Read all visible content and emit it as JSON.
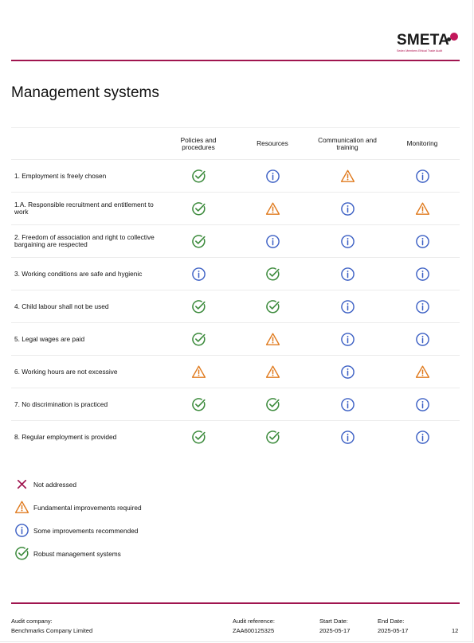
{
  "logo": {
    "text": "SMETA",
    "tagline": "Sedex Members Ethical Trade Audit"
  },
  "page_title": "Management systems",
  "columns": [
    "Policies and procedures",
    "Resources",
    "Communication and training",
    "Monitoring"
  ],
  "rows": [
    {
      "label": "1. Employment is freely chosen",
      "status": [
        "robust-check-icon",
        "info-icon",
        "warning-icon",
        "info-icon"
      ]
    },
    {
      "label": "1.A. Responsible recruitment and entitlement to work",
      "status": [
        "robust-check-icon",
        "warning-icon",
        "info-icon",
        "warning-icon"
      ]
    },
    {
      "label": "2. Freedom of association and right to collective bargaining are respected",
      "status": [
        "robust-check-icon",
        "info-icon",
        "info-icon",
        "info-icon"
      ]
    },
    {
      "label": "3. Working conditions are safe and hygienic",
      "status": [
        "info-icon",
        "robust-check-icon",
        "info-icon",
        "info-icon"
      ]
    },
    {
      "label": "4. Child labour shall not be used",
      "status": [
        "robust-check-icon",
        "robust-check-icon",
        "info-icon",
        "info-icon"
      ]
    },
    {
      "label": "5. Legal wages are paid",
      "status": [
        "robust-check-icon",
        "warning-icon",
        "info-icon",
        "info-icon"
      ]
    },
    {
      "label": "6. Working hours are not excessive",
      "status": [
        "warning-icon",
        "warning-icon",
        "info-icon",
        "warning-icon"
      ]
    },
    {
      "label": "7. No discrimination is practiced",
      "status": [
        "robust-check-icon",
        "robust-check-icon",
        "info-icon",
        "info-icon"
      ]
    },
    {
      "label": "8. Regular employment is provided",
      "status": [
        "robust-check-icon",
        "robust-check-icon",
        "info-icon",
        "info-icon"
      ]
    }
  ],
  "legend": [
    {
      "icon": "cross-icon",
      "label": "Not addressed"
    },
    {
      "icon": "warning-icon",
      "label": "Fundamental improvements required"
    },
    {
      "icon": "info-icon",
      "label": "Some improvements recommended"
    },
    {
      "icon": "robust-check-icon",
      "label": "Robust management systems"
    }
  ],
  "colors": {
    "rule": "#a0154f",
    "check": "#3d8b3d",
    "info": "#3b5fc4",
    "warning": "#e07b1f",
    "cross": "#a0154f"
  },
  "footer": {
    "audit_company_label": "Audit company:",
    "audit_company_value": "Benchmarks Company Limited",
    "audit_reference_label": "Audit reference:",
    "audit_reference_value": "ZAA600125325",
    "start_date_label": "Start Date:",
    "start_date_value": "2025-05-17",
    "end_date_label": "End Date:",
    "end_date_value": "2025-05-17",
    "page_number": "12"
  }
}
